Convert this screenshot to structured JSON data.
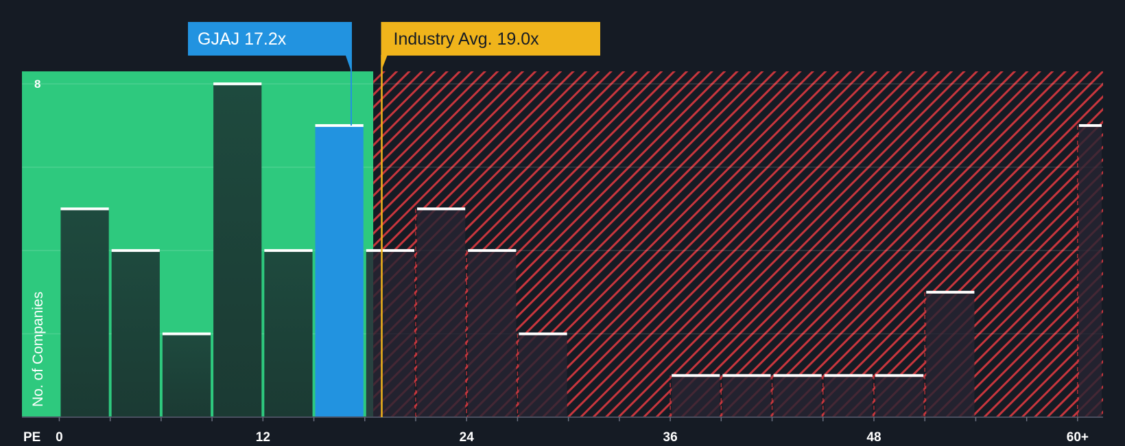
{
  "chart_data": {
    "type": "bar",
    "xlabel": "PE",
    "ylabel": "No. of Companies",
    "xlim": [
      -2.2,
      61.5
    ],
    "ylim": [
      0,
      8.3
    ],
    "x_ticks": [
      "0",
      "12",
      "24",
      "36",
      "48",
      "60+"
    ],
    "x_tick_values": [
      0,
      12,
      24,
      36,
      48,
      60
    ],
    "y_ticks": [
      "8"
    ],
    "y_tick_values": [
      8
    ],
    "bin_width": 3,
    "bins": [
      {
        "x0": 0,
        "x1": 3,
        "value": 5
      },
      {
        "x0": 3,
        "x1": 6,
        "value": 4
      },
      {
        "x0": 6,
        "x1": 9,
        "value": 2
      },
      {
        "x0": 9,
        "x1": 12,
        "value": 8
      },
      {
        "x0": 12,
        "x1": 15,
        "value": 4
      },
      {
        "x0": 15,
        "x1": 18,
        "value": 7,
        "highlight": true
      },
      {
        "x0": 18,
        "x1": 21,
        "value": 4
      },
      {
        "x0": 21,
        "x1": 24,
        "value": 5
      },
      {
        "x0": 24,
        "x1": 27,
        "value": 4
      },
      {
        "x0": 27,
        "x1": 30,
        "value": 2
      },
      {
        "x0": 36,
        "x1": 39,
        "value": 1
      },
      {
        "x0": 39,
        "x1": 42,
        "value": 1
      },
      {
        "x0": 42,
        "x1": 45,
        "value": 1
      },
      {
        "x0": 45,
        "x1": 48,
        "value": 1
      },
      {
        "x0": 48,
        "x1": 51,
        "value": 1
      },
      {
        "x0": 51,
        "x1": 54,
        "value": 3
      },
      {
        "x0": 60,
        "x1": 61.5,
        "value": 7
      }
    ],
    "fair_zone_max": 18.5,
    "company": {
      "label": "GJAJ 17.2x",
      "value": 17.2
    },
    "industry": {
      "label": "Industry Avg. 19.0x",
      "value": 19.0
    }
  },
  "colors": {
    "background": "#151b24",
    "green_zone": "#2ec97e",
    "red_stripe": "#c8363d",
    "bar_in_green": "#1f4d40",
    "bar_in_red": "#272532",
    "highlight_bar": "#2293e0",
    "company_callout": "#2293e0",
    "industry_callout": "#f0b41b",
    "cap": "#ffffff"
  }
}
